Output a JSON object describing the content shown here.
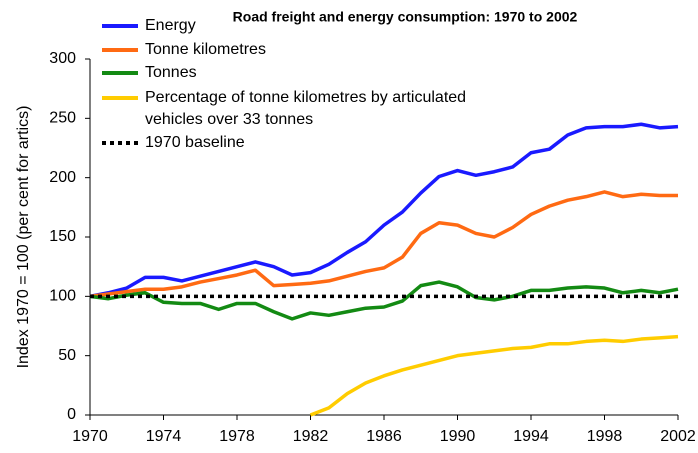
{
  "chart_data": {
    "type": "line",
    "title": "Road freight and energy consumption: 1970 to 2002",
    "y_label": "Index 1970 = 100 (per cent for artics)",
    "x": [
      1970,
      1971,
      1972,
      1973,
      1974,
      1975,
      1976,
      1977,
      1978,
      1979,
      1980,
      1981,
      1982,
      1983,
      1984,
      1985,
      1986,
      1987,
      1988,
      1989,
      1990,
      1991,
      1992,
      1993,
      1994,
      1995,
      1996,
      1997,
      1998,
      1999,
      2000,
      2001,
      2002
    ],
    "xlim": [
      1970,
      2002
    ],
    "xticks": [
      1970,
      1974,
      1978,
      1982,
      1986,
      1990,
      1994,
      1998,
      2002
    ],
    "ylim": [
      0,
      300
    ],
    "yticks": [
      0,
      50,
      100,
      150,
      200,
      250,
      300
    ],
    "grid": false,
    "legend": "upper left",
    "series": [
      {
        "name": "Energy",
        "color": "#1a1aff",
        "values": [
          100,
          103,
          107,
          116,
          116,
          113,
          117,
          121,
          125,
          129,
          125,
          118,
          120,
          127,
          137,
          146,
          160,
          171,
          187,
          201,
          206,
          202,
          205,
          209,
          221,
          224,
          236,
          242,
          243,
          243,
          245,
          242,
          243
        ]
      },
      {
        "name": "Tonne kilometres",
        "color": "#ff6a13",
        "values": [
          100,
          102,
          104,
          106,
          106,
          108,
          112,
          115,
          118,
          122,
          109,
          110,
          111,
          113,
          117,
          121,
          124,
          133,
          153,
          162,
          160,
          153,
          150,
          158,
          169,
          176,
          181,
          184,
          188,
          184,
          186,
          185,
          185
        ]
      },
      {
        "name": "Tonnes",
        "color": "#138a13",
        "values": [
          100,
          98,
          101,
          103,
          95,
          94,
          94,
          89,
          94,
          94,
          87,
          81,
          86,
          84,
          87,
          90,
          91,
          96,
          109,
          112,
          108,
          99,
          97,
          100,
          105,
          105,
          107,
          108,
          107,
          103,
          105,
          103,
          106
        ]
      },
      {
        "name": "Percentage of tonne kilometres by articulated vehicles over 33 tonnes",
        "color": "#ffcc00",
        "values": [
          null,
          null,
          null,
          null,
          null,
          null,
          null,
          null,
          null,
          null,
          null,
          null,
          0,
          6,
          18,
          27,
          33,
          38,
          42,
          46,
          50,
          52,
          54,
          56,
          57,
          60,
          60,
          62,
          63,
          62,
          64,
          65,
          66
        ]
      },
      {
        "name": "1970 baseline",
        "color": "#000000",
        "style": "dotted",
        "values": [
          100,
          100,
          100,
          100,
          100,
          100,
          100,
          100,
          100,
          100,
          100,
          100,
          100,
          100,
          100,
          100,
          100,
          100,
          100,
          100,
          100,
          100,
          100,
          100,
          100,
          100,
          100,
          100,
          100,
          100,
          100,
          100,
          100
        ]
      }
    ]
  }
}
